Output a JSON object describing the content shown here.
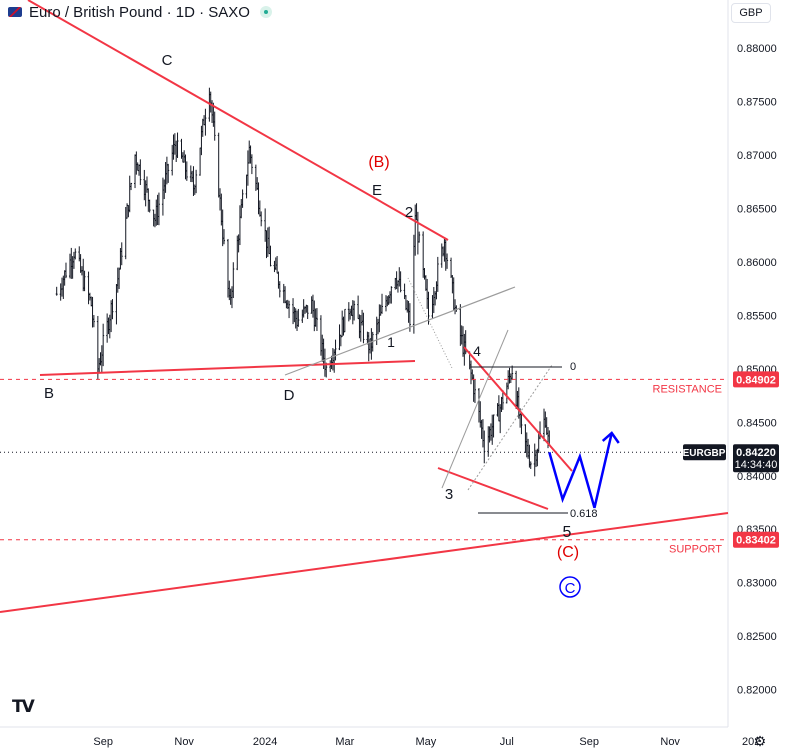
{
  "header": {
    "title": "Euro / British Pound · 1D · SAXO",
    "currency_button": "GBP"
  },
  "colors": {
    "trendline": "#f23645",
    "wave": "#0000ff",
    "candle": "#131722",
    "channel": "#9c9c9c",
    "level_dash": "#f23645",
    "label_red": "#e00000"
  },
  "chart_data": {
    "type": "candlestick",
    "symbol": "EURGBP",
    "ylim": [
      0.8165,
      0.8845
    ],
    "y_ticks": [
      "0.88000",
      "0.87500",
      "0.87000",
      "0.86500",
      "0.86000",
      "0.85500",
      "0.85000",
      "0.84500",
      "0.84000",
      "0.83500",
      "0.83000",
      "0.82500",
      "0.82000"
    ],
    "x_ticks": [
      "Sep",
      "Nov",
      "2024",
      "Mar",
      "May",
      "Jul",
      "Sep",
      "Nov",
      "202"
    ],
    "price_path": [
      {
        "date": "2023-07-28",
        "close": 0.857
      },
      {
        "date": "2023-08-10",
        "close": 0.861
      },
      {
        "date": "2023-08-23",
        "close": 0.856
      },
      {
        "date": "2023-08-28",
        "close": 0.85
      },
      {
        "date": "2023-09-12",
        "close": 0.8585
      },
      {
        "date": "2023-09-25",
        "close": 0.87
      },
      {
        "date": "2023-10-10",
        "close": 0.864
      },
      {
        "date": "2023-10-25",
        "close": 0.871
      },
      {
        "date": "2023-11-08",
        "close": 0.867
      },
      {
        "date": "2023-11-20",
        "close": 0.8765
      },
      {
        "date": "2023-12-05",
        "close": 0.856
      },
      {
        "date": "2023-12-20",
        "close": 0.8705
      },
      {
        "date": "2024-01-05",
        "close": 0.86
      },
      {
        "date": "2024-01-25",
        "close": 0.8545
      },
      {
        "date": "2024-02-05",
        "close": 0.856
      },
      {
        "date": "2024-02-16",
        "close": 0.85
      },
      {
        "date": "2024-03-05",
        "close": 0.856
      },
      {
        "date": "2024-03-20",
        "close": 0.852
      },
      {
        "date": "2024-04-08",
        "close": 0.859
      },
      {
        "date": "2024-04-20",
        "close": 0.854
      },
      {
        "date": "2024-04-23",
        "close": 0.8645
      },
      {
        "date": "2024-05-03",
        "close": 0.855
      },
      {
        "date": "2024-05-15",
        "close": 0.862
      },
      {
        "date": "2024-05-25",
        "close": 0.854
      },
      {
        "date": "2024-06-05",
        "close": 0.849
      },
      {
        "date": "2024-06-14",
        "close": 0.843
      },
      {
        "date": "2024-06-25",
        "close": 0.846
      },
      {
        "date": "2024-07-05",
        "close": 0.85
      },
      {
        "date": "2024-07-12",
        "close": 0.844
      },
      {
        "date": "2024-07-20",
        "close": 0.841
      },
      {
        "date": "2024-07-30",
        "close": 0.8455
      },
      {
        "date": "2024-08-02",
        "close": 0.8422
      }
    ],
    "projection": [
      {
        "date": "2024-08-02",
        "value": 0.8422
      },
      {
        "date": "2024-08-12",
        "value": 0.8378
      },
      {
        "date": "2024-08-25",
        "value": 0.8418
      },
      {
        "date": "2024-09-05",
        "value": 0.837
      },
      {
        "date": "2024-09-18",
        "value": 0.844
      }
    ],
    "levels": [
      {
        "name": "RESISTANCE",
        "value": "0.84902"
      },
      {
        "name": "SUPPORT",
        "value": "0.83402"
      }
    ],
    "last_price": {
      "label": "EURGBP",
      "value": "0.84220",
      "countdown": "14:34:40"
    },
    "wave_labels": [
      "B",
      "C",
      "D",
      "E",
      "(B)",
      "1",
      "2",
      "3",
      "4",
      "5",
      "(C)",
      "C"
    ],
    "fib_labels": [
      "0",
      "0.618"
    ]
  }
}
